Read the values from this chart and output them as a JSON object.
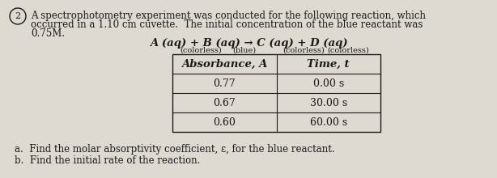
{
  "circle_num": "2",
  "para_line1": "A spectrophotometry experiment was conducted for the following reaction, which",
  "para_line2": "occurred in a 1.10 cm cuvette.  The initial concentration of the blue reactant was",
  "para_line3": "0.75M.",
  "reaction_text": "A (aq) + B (aq) → C (aq) + D (aq)",
  "label_colorless1": "(colorless)",
  "label_blue": "(blue)",
  "label_colorless2": "(colorless)",
  "label_colorless3": "(colorless)",
  "col1_header": "Absorbance, A",
  "col2_header": "Time, t",
  "table_data": [
    [
      "0.77",
      "0.00 s"
    ],
    [
      "0.67",
      "30.00 s"
    ],
    [
      "0.60",
      "60.00 s"
    ]
  ],
  "question_a": "a.  Find the molar absorptivity coefficient, ε, for the blue reactant.",
  "question_b": "b.  Find the initial rate of the reaction.",
  "bg_color": "#dedad2",
  "text_color": "#1a1a1a",
  "font_size_body": 8.5,
  "font_size_reaction": 9.5,
  "font_size_table_header": 9.5,
  "font_size_table_body": 9.0,
  "font_size_label": 7.0,
  "font_size_questions": 8.5
}
